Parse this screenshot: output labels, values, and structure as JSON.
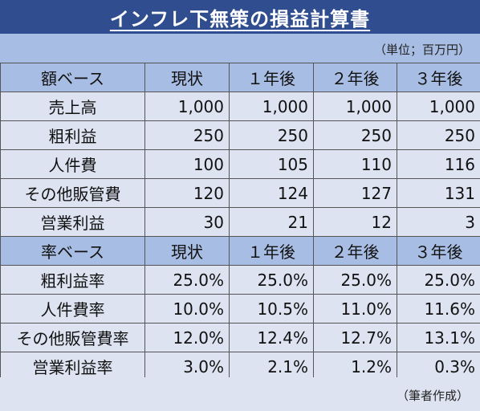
{
  "title": "インフレ下無策の損益計算書",
  "unit_note": "（単位；百万円）",
  "columns": [
    "現状",
    "１年後",
    "２年後",
    "３年後"
  ],
  "amount_section": {
    "header": "額ベース",
    "rows": [
      {
        "label": "売上高",
        "values": [
          "1,000",
          "1,000",
          "1,000",
          "1,000"
        ]
      },
      {
        "label": "粗利益",
        "values": [
          "250",
          "250",
          "250",
          "250"
        ]
      },
      {
        "label": "人件費",
        "values": [
          "100",
          "105",
          "110",
          "116"
        ]
      },
      {
        "label": "その他販管費",
        "values": [
          "120",
          "124",
          "127",
          "131"
        ]
      },
      {
        "label": "営業利益",
        "values": [
          "30",
          "21",
          "12",
          "3"
        ]
      }
    ]
  },
  "rate_section": {
    "header": "率ベース",
    "rows": [
      {
        "label": "粗利益率",
        "values": [
          "25.0%",
          "25.0%",
          "25.0%",
          "25.0%"
        ]
      },
      {
        "label": "人件費率",
        "values": [
          "10.0%",
          "10.5%",
          "11.0%",
          "11.6%"
        ]
      },
      {
        "label": "その他販管費率",
        "values": [
          "12.0%",
          "12.4%",
          "12.7%",
          "13.1%"
        ]
      },
      {
        "label": "営業利益率",
        "values": [
          "3.0%",
          "2.1%",
          "1.2%",
          "0.3%"
        ]
      }
    ]
  },
  "source_note": "（筆者作成）",
  "colors": {
    "title_bg": "#2f4d8f",
    "header_bg": "#a8bde3",
    "cell_bg": "#dde3f1",
    "border": "#555555"
  }
}
